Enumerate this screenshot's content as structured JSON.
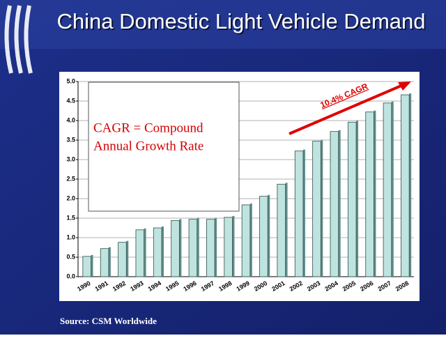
{
  "chart_data": {
    "type": "bar",
    "title": "China Domestic Light Vehicle Demand",
    "categories": [
      "1990",
      "1991",
      "1992",
      "1993",
      "1994",
      "1995",
      "1996",
      "1997",
      "1998",
      "1999",
      "2000",
      "2001",
      "2002",
      "2003",
      "2004",
      "2005",
      "2006",
      "2007",
      "2008"
    ],
    "values": [
      0.52,
      0.72,
      0.88,
      1.2,
      1.25,
      1.44,
      1.47,
      1.47,
      1.52,
      1.84,
      2.06,
      2.37,
      3.22,
      3.47,
      3.72,
      3.96,
      4.22,
      4.45,
      4.66
    ],
    "color": "#bfe3df",
    "ylim": [
      0,
      5
    ],
    "yticks": [
      {
        "value": 0,
        "label": "0.0"
      },
      0.5,
      {
        "value": 1,
        "label": "1.0"
      },
      1.5,
      {
        "value": 2,
        "label": "2.0"
      },
      2.5,
      {
        "value": 3,
        "label": "3.0"
      },
      3.5,
      {
        "value": 4,
        "label": "4.0"
      },
      4.5,
      {
        "value": 5,
        "label": "5.0"
      }
    ],
    "grid": true,
    "note": [
      "CAGR = Compound",
      "Annual Growth Rate"
    ],
    "annotation": "10.4% CAGR",
    "source": "Source: CSM Worldwide"
  }
}
